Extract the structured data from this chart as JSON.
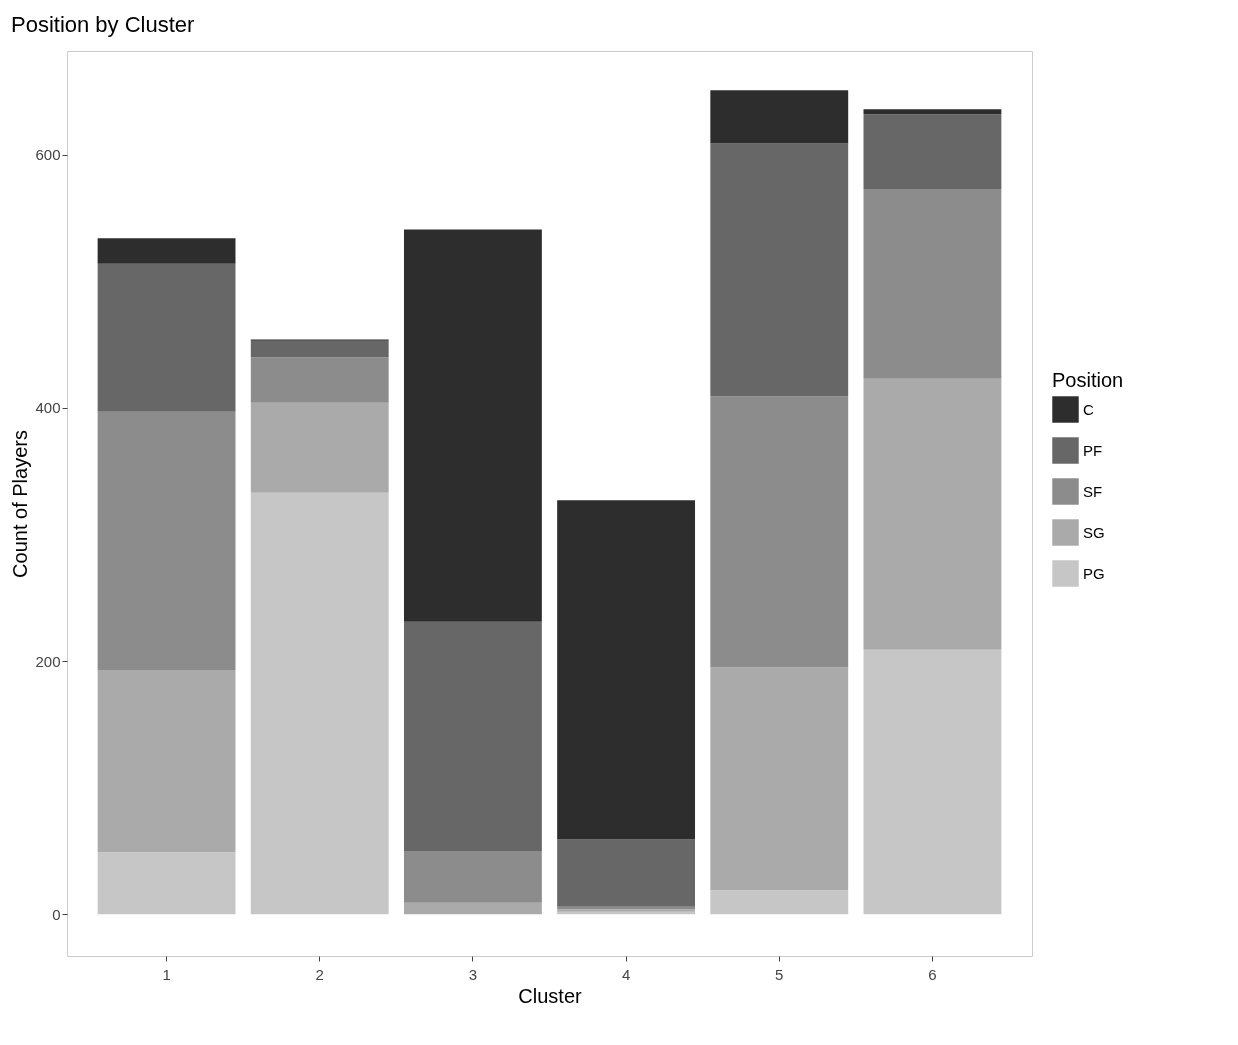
{
  "chart_data": {
    "type": "bar",
    "title": "Position by Cluster",
    "xlabel": "Cluster",
    "ylabel": "Count of Players",
    "legend_title": "Position",
    "categories": [
      "1",
      "2",
      "3",
      "4",
      "5",
      "6"
    ],
    "stacked": true,
    "legend": "right",
    "ylim": [
      -33,
      682
    ],
    "yticks": [
      0,
      200,
      400,
      600
    ],
    "series": [
      {
        "name": "PG",
        "color": "#c6c6c6",
        "values": [
          49,
          333,
          0,
          2,
          19,
          209
        ]
      },
      {
        "name": "SG",
        "color": "#aaaaaa",
        "values": [
          144,
          71,
          9,
          2,
          176,
          214
        ]
      },
      {
        "name": "SF",
        "color": "#8c8c8c",
        "values": [
          204,
          36,
          41,
          2,
          214,
          150
        ]
      },
      {
        "name": "PF",
        "color": "#676767",
        "values": [
          117,
          13,
          181,
          53,
          200,
          59
        ]
      },
      {
        "name": "C",
        "color": "#2d2d2d",
        "values": [
          20,
          1,
          310,
          268,
          42,
          4
        ]
      }
    ]
  }
}
